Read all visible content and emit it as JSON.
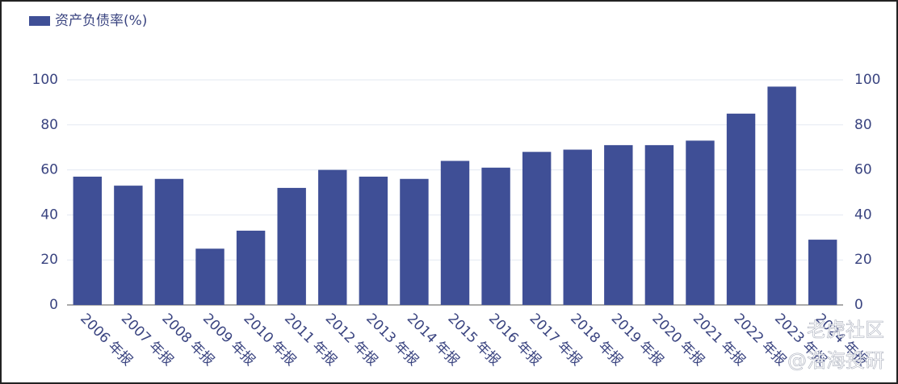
{
  "chart_data": {
    "type": "bar",
    "legend": "资产负债率(%)",
    "categories": [
      "2006 年报",
      "2007 年报",
      "2008 年报",
      "2009 年报",
      "2010 年报",
      "2011 年报",
      "2012 年报",
      "2013 年报",
      "2014 年报",
      "2015 年报",
      "2016 年报",
      "2017 年报",
      "2018 年报",
      "2019 年报",
      "2020 年报",
      "2021 年报",
      "2022 年报",
      "2023 年报",
      "2024 年报"
    ],
    "values": [
      57,
      53,
      56,
      25,
      33,
      52,
      60,
      57,
      56,
      64,
      61,
      68,
      69,
      71,
      71,
      73,
      85,
      97,
      29
    ],
    "color": "#3f4f96",
    "ylim": [
      0,
      100
    ],
    "yticks": [
      0,
      20,
      40,
      60,
      80,
      100
    ],
    "y2lim": [
      0,
      100
    ],
    "y2ticks": [
      0,
      20,
      40,
      60,
      80,
      100
    ],
    "grid": true,
    "watermark": [
      "老虎社区",
      "@浩海投研"
    ]
  }
}
